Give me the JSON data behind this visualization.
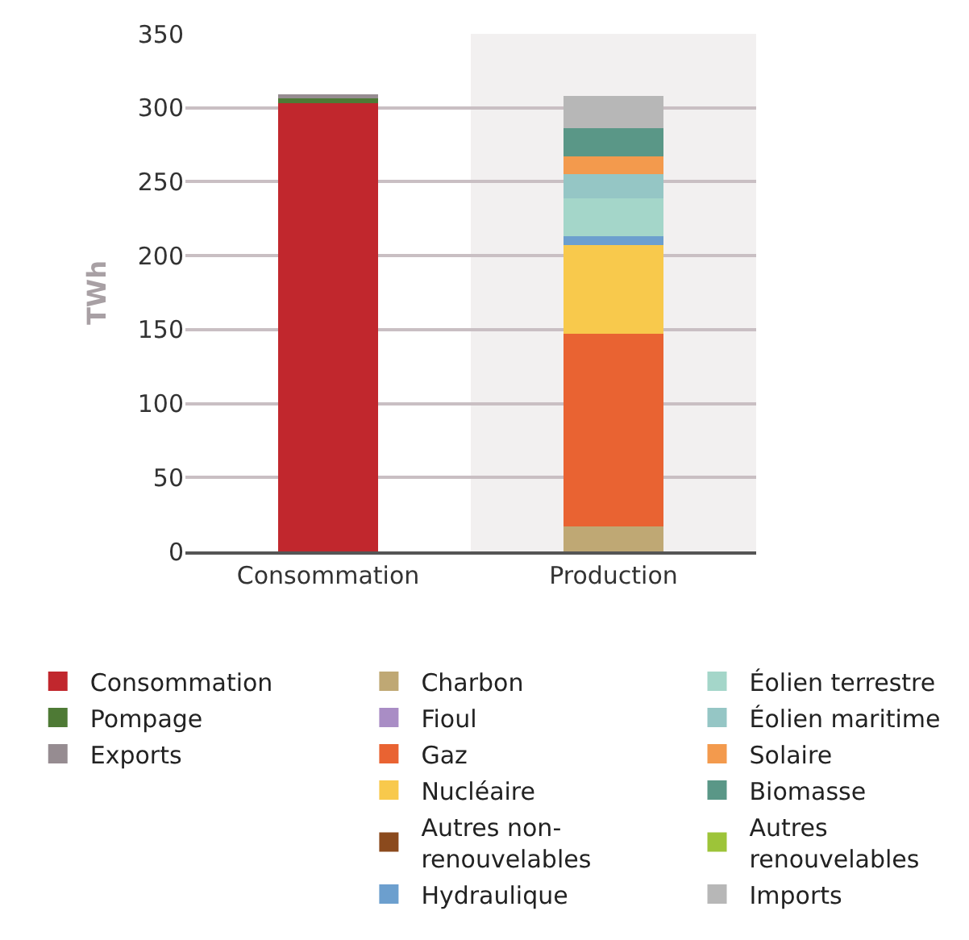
{
  "chart_data": {
    "type": "bar",
    "stacked": true,
    "ylabel": "TWh",
    "categories": [
      "Consommation",
      "Production"
    ],
    "ylim": [
      0,
      350
    ],
    "yticks": [
      0,
      50,
      100,
      150,
      200,
      250,
      300,
      350
    ],
    "grid": "y",
    "legend": "bottom",
    "bands": [
      {
        "axis": "x",
        "from": "Production",
        "to": "Production",
        "color": "#f2f0f0"
      }
    ],
    "series": [
      {
        "name": "Consommation",
        "color": "#c1272d",
        "values": [
          303,
          0
        ]
      },
      {
        "name": "Pompage",
        "color": "#4e7a35",
        "values": [
          4,
          0
        ]
      },
      {
        "name": "Exports",
        "color": "#968c91",
        "values": [
          2,
          0
        ]
      },
      {
        "name": "Charbon",
        "color": "#bfa874",
        "values": [
          0,
          17
        ]
      },
      {
        "name": "Fioul",
        "color": "#a98dc5",
        "values": [
          0,
          0
        ]
      },
      {
        "name": "Gaz",
        "color": "#e96332",
        "values": [
          0,
          130
        ]
      },
      {
        "name": "Nucléaire",
        "color": "#f8c94c",
        "values": [
          0,
          60
        ]
      },
      {
        "name": "Autres non-renouvelables",
        "color": "#8b4a1d",
        "values": [
          0,
          0
        ]
      },
      {
        "name": "Hydraulique",
        "color": "#6c9fce",
        "values": [
          0,
          6
        ]
      },
      {
        "name": "Éolien terrestre",
        "color": "#a4d6c9",
        "values": [
          0,
          26
        ]
      },
      {
        "name": "Éolien maritime",
        "color": "#95c6c5",
        "values": [
          0,
          16
        ]
      },
      {
        "name": "Solaire",
        "color": "#f39a4d",
        "values": [
          0,
          12
        ]
      },
      {
        "name": "Biomasse",
        "color": "#5a9787",
        "values": [
          0,
          19
        ]
      },
      {
        "name": "Autres renouvelables",
        "color": "#9dc439",
        "values": [
          0,
          0
        ]
      },
      {
        "name": "Imports",
        "color": "#b7b7b7",
        "values": [
          0,
          22
        ]
      }
    ]
  }
}
